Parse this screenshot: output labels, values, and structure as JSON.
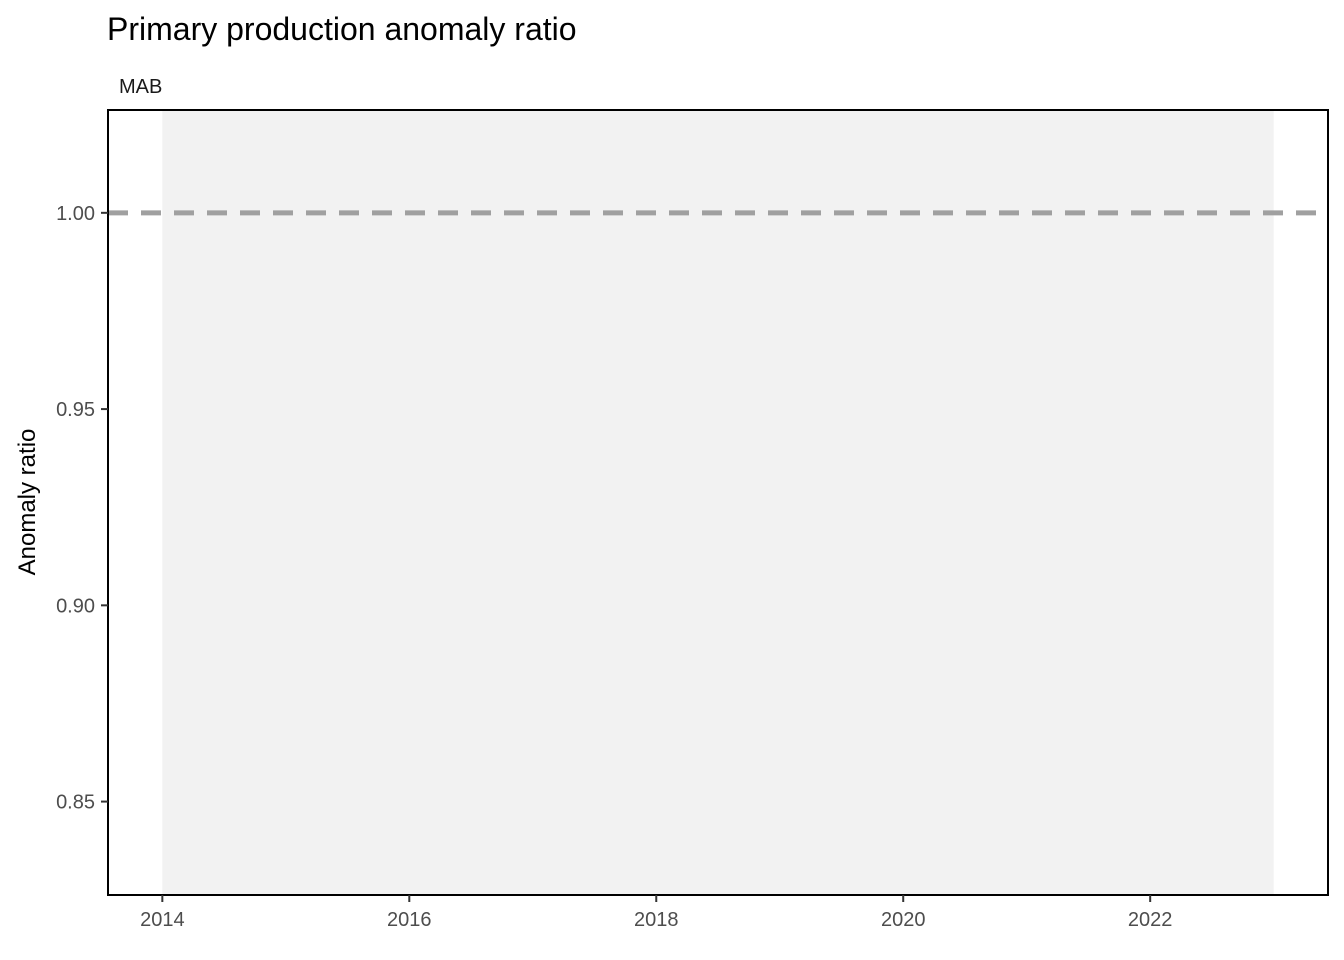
{
  "chart_data": {
    "type": "line",
    "title": "Primary production anomaly ratio",
    "facet_label": "MAB",
    "xlabel": "",
    "ylabel": "Anomaly ratio",
    "xlim": [
      2013.56,
      2023.44
    ],
    "ylim": [
      0.8262,
      1.0262
    ],
    "x_ticks": [
      2014,
      2016,
      2018,
      2020,
      2022
    ],
    "x_tick_labels": [
      "2014",
      "2016",
      "2018",
      "2020",
      "2022"
    ],
    "y_ticks": [
      0.85,
      0.9,
      0.95,
      1.0
    ],
    "y_tick_labels": [
      "0.85",
      "0.90",
      "0.95",
      "1.00"
    ],
    "shaded_region": {
      "x_start": 2014,
      "x_end": 2023,
      "color": "#f2f2f2"
    },
    "reference_line": {
      "y": 1.0,
      "style": "dashed",
      "color": "#a0a0a0"
    },
    "series": [],
    "grid": false,
    "legend": "none"
  }
}
